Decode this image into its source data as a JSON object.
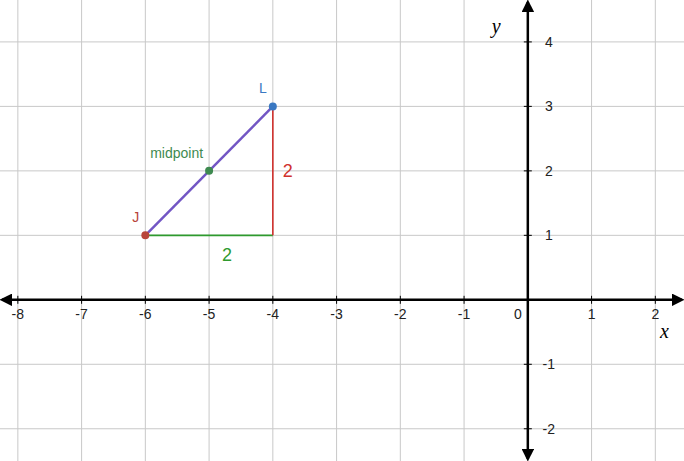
{
  "chart_data": {
    "type": "scatter",
    "x_label": "x",
    "y_label": "y",
    "xlim": [
      -8.28,
      2.45
    ],
    "ylim": [
      -2.5,
      4.65
    ],
    "xticks": [
      -8,
      -7,
      -6,
      -5,
      -4,
      -3,
      -2,
      -1,
      0,
      1,
      2
    ],
    "yticks": [
      -2,
      -1,
      0,
      1,
      2,
      3,
      4
    ],
    "grid": true,
    "series": [
      {
        "type": "line",
        "color": "#2e9a2e",
        "line_style": "solid",
        "label": "2",
        "x": [
          -6,
          -4
        ],
        "values": [
          1,
          1
        ]
      },
      {
        "type": "line",
        "color": "#d0312d",
        "line_style": "solid",
        "label": "2",
        "x": [
          -4,
          -4
        ],
        "values": [
          1,
          3
        ]
      },
      {
        "type": "line",
        "color": "#7256c4",
        "line_style": "solid",
        "x": [
          -6,
          -4
        ],
        "values": [
          1,
          3
        ]
      },
      {
        "type": "scatter",
        "name": "J",
        "color": "#b8443a",
        "marker": "circle",
        "x": [
          -6
        ],
        "values": [
          1
        ]
      },
      {
        "type": "scatter",
        "name": "midpoint",
        "color": "#3e8a50",
        "marker": "circle",
        "x": [
          -5
        ],
        "values": [
          2
        ]
      },
      {
        "type": "scatter",
        "name": "L",
        "color": "#3a78c2",
        "marker": "circle",
        "x": [
          -4
        ],
        "values": [
          3
        ]
      }
    ]
  }
}
